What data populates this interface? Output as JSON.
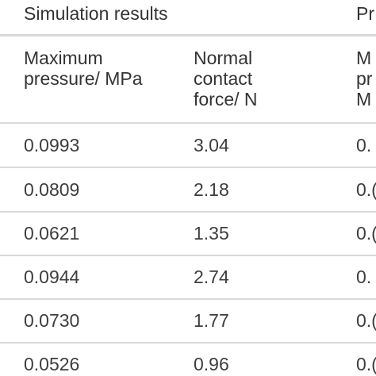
{
  "table": {
    "groups": [
      {
        "label": "Simulation results"
      },
      {
        "label": "Pr"
      }
    ],
    "columns": [
      {
        "label": "Maximum\npressure/ MPa"
      },
      {
        "label": "Normal\ncontact\nforce/ N"
      },
      {
        "label": "M\npr\nM"
      }
    ],
    "rows": [
      [
        "0.0993",
        "3.04",
        "0."
      ],
      [
        "0.0809",
        "2.18",
        "0.("
      ],
      [
        "0.0621",
        "1.35",
        "0.("
      ],
      [
        "0.0944",
        "2.74",
        "0."
      ],
      [
        "0.0730",
        "1.77",
        "0.("
      ],
      [
        "0.0526",
        "0.96",
        "0.("
      ]
    ]
  }
}
